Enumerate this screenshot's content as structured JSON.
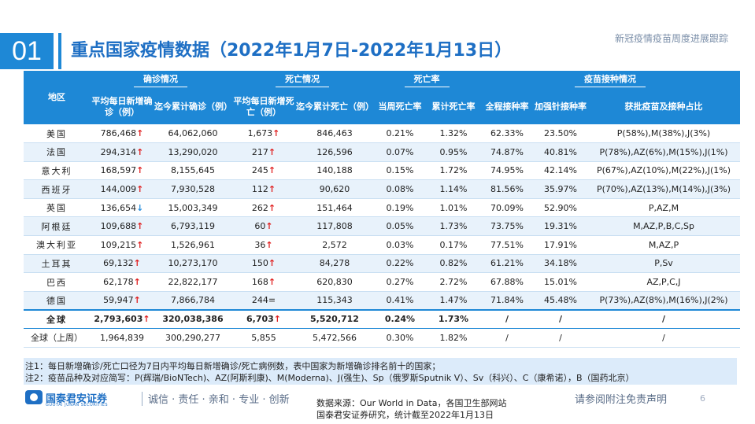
{
  "header": {
    "section_number": "01",
    "title": "重点国家疫情数据（2022年1月7日-2022年1月13日）",
    "top_right": "新冠疫情疫苗周度进展跟踪"
  },
  "table": {
    "head_region": "地区",
    "groups": {
      "cases": "确诊情况",
      "deaths": "死亡情况",
      "mortality": "死亡率",
      "vaccine": "疫苗接种情况"
    },
    "columns": {
      "avg_new_cases": "平均每日新增确诊（例）",
      "cum_cases": "迄今累计确诊（例）",
      "avg_new_deaths": "平均每日新增死亡（例）",
      "cum_deaths": "迄今累计死亡（例）",
      "week_mort": "当周死亡率",
      "cum_mort": "累计死亡率",
      "full_vax": "全程接种率",
      "booster": "加强针接种率",
      "vaccines": "获批疫苗及接种占比"
    },
    "rows": [
      {
        "country": "美国",
        "avg_cases": "786,468",
        "cases_trend": "↑",
        "cum_cases": "64,062,060",
        "avg_deaths": "1,673",
        "deaths_trend": "↑",
        "cum_deaths": "846,463",
        "week_mort": "0.21%",
        "cum_mort": "1.32%",
        "full_vax": "62.33%",
        "booster": "23.50%",
        "vaccines": "P(58%),M(38%),J(3%)"
      },
      {
        "country": "法国",
        "avg_cases": "294,314",
        "cases_trend": "↑",
        "cum_cases": "13,290,020",
        "avg_deaths": "217",
        "deaths_trend": "↑",
        "cum_deaths": "126,596",
        "week_mort": "0.07%",
        "cum_mort": "0.95%",
        "full_vax": "74.87%",
        "booster": "40.81%",
        "vaccines": "P(78%),AZ(6%),M(15%),J(1%)"
      },
      {
        "country": "意大利",
        "avg_cases": "168,597",
        "cases_trend": "↑",
        "cum_cases": "8,155,645",
        "avg_deaths": "245",
        "deaths_trend": "↑",
        "cum_deaths": "140,188",
        "week_mort": "0.15%",
        "cum_mort": "1.72%",
        "full_vax": "74.95%",
        "booster": "42.14%",
        "vaccines": "P(67%),AZ(10%),M(22%),J(1%)"
      },
      {
        "country": "西班牙",
        "avg_cases": "144,009",
        "cases_trend": "↑",
        "cum_cases": "7,930,528",
        "avg_deaths": "112",
        "deaths_trend": "↑",
        "cum_deaths": "90,620",
        "week_mort": "0.08%",
        "cum_mort": "1.14%",
        "full_vax": "81.56%",
        "booster": "35.97%",
        "vaccines": "P(70%),AZ(13%),M(14%),J(3%)"
      },
      {
        "country": "英国",
        "avg_cases": "136,654",
        "cases_trend": "↓",
        "cum_cases": "15,003,349",
        "avg_deaths": "262",
        "deaths_trend": "↑",
        "cum_deaths": "151,464",
        "week_mort": "0.19%",
        "cum_mort": "1.01%",
        "full_vax": "70.09%",
        "booster": "52.90%",
        "vaccines": "P,AZ,M"
      },
      {
        "country": "阿根廷",
        "avg_cases": "109,688",
        "cases_trend": "↑",
        "cum_cases": "6,793,119",
        "avg_deaths": "60",
        "deaths_trend": "↑",
        "cum_deaths": "117,808",
        "week_mort": "0.05%",
        "cum_mort": "1.73%",
        "full_vax": "73.75%",
        "booster": "19.31%",
        "vaccines": "M,AZ,P,B,C,Sp"
      },
      {
        "country": "澳大利亚",
        "avg_cases": "109,215",
        "cases_trend": "↑",
        "cum_cases": "1,526,961",
        "avg_deaths": "36",
        "deaths_trend": "↑",
        "cum_deaths": "2,572",
        "week_mort": "0.03%",
        "cum_mort": "0.17%",
        "full_vax": "77.51%",
        "booster": "17.91%",
        "vaccines": "M,AZ,P"
      },
      {
        "country": "土耳其",
        "avg_cases": "69,132",
        "cases_trend": "↑",
        "cum_cases": "10,273,170",
        "avg_deaths": "150",
        "deaths_trend": "↑",
        "cum_deaths": "84,278",
        "week_mort": "0.22%",
        "cum_mort": "0.82%",
        "full_vax": "61.21%",
        "booster": "34.18%",
        "vaccines": "P,Sv"
      },
      {
        "country": "巴西",
        "avg_cases": "62,178",
        "cases_trend": "↑",
        "cum_cases": "22,822,177",
        "avg_deaths": "168",
        "deaths_trend": "↑",
        "cum_deaths": "620,830",
        "week_mort": "0.27%",
        "cum_mort": "2.72%",
        "full_vax": "67.88%",
        "booster": "15.01%",
        "vaccines": "AZ,P,C,J"
      },
      {
        "country": "德国",
        "avg_cases": "59,947",
        "cases_trend": "↑",
        "cum_cases": "7,866,784",
        "avg_deaths": "244",
        "deaths_trend": "=",
        "cum_deaths": "115,343",
        "week_mort": "0.41%",
        "cum_mort": "1.47%",
        "full_vax": "71.84%",
        "booster": "45.48%",
        "vaccines": "P(73%),AZ(8%),M(16%),J(2%)"
      }
    ],
    "global": {
      "country": "全球",
      "avg_cases": "2,793,603",
      "cases_trend": "↑",
      "cum_cases": "320,038,386",
      "avg_deaths": "6,703",
      "deaths_trend": "↑",
      "cum_deaths": "5,520,712",
      "week_mort": "0.24%",
      "cum_mort": "1.73%",
      "full_vax": "/",
      "booster": "/",
      "vaccines": "/"
    },
    "global_prev": {
      "country": "全球（上周）",
      "avg_cases": "1,964,839",
      "cum_cases": "300,290,277",
      "avg_deaths": "5,855",
      "cum_deaths": "5,472,566",
      "week_mort": "0.30%",
      "cum_mort": "1.82%",
      "full_vax": "/",
      "booster": "/",
      "vaccines": "/"
    }
  },
  "notes": {
    "note1": "注1：每日新增确诊/死亡口径为7日内平均每日新增确诊/死亡病例数，表中国家为新增确诊排名前十的国家；",
    "note2": "注2：疫苗品种及对应简写：P(辉瑞/BioNTech)、AZ(阿斯利康)、M(Moderna)、J(强生)、Sp（俄罗斯Sputnik V）、Sv（科兴）、C（康希诺），B（国药北京）"
  },
  "footer": {
    "company": "国泰君安证券",
    "company_en": "GUOTAI JUNAN SECURITIES",
    "slogan": "诚信 · 责任 · 亲和 · 专业 · 创新",
    "source_line1": "数据来源：Our World in Data，各国卫生部网站",
    "source_line2": "国泰君安证券研究，统计截至2022年1月13日",
    "disclaimer": "请参阅附注免责声明",
    "page": "6"
  },
  "colors": {
    "accent": "#1e88d6",
    "title": "#1e6fc4",
    "up": "#e02020",
    "down": "#2a90e0",
    "alt_row": "#e8f2fb"
  }
}
